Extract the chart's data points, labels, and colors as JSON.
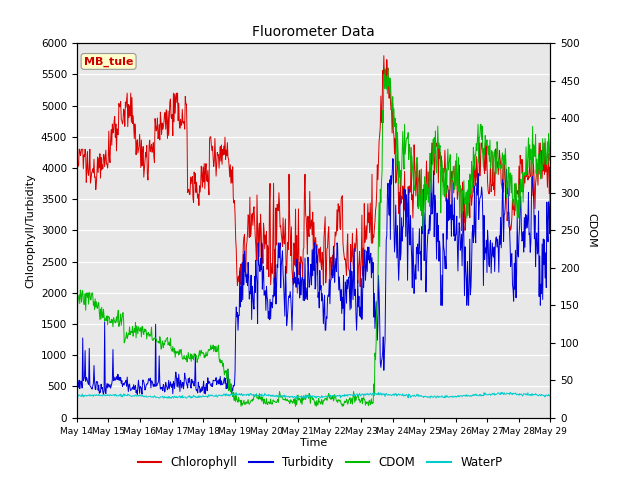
{
  "title": "Fluorometer Data",
  "xlabel": "Time",
  "ylabel_left": "Chlorophyll/Turbidity",
  "ylabel_right": "CDOM",
  "ylim_left": [
    0,
    6000
  ],
  "ylim_right": [
    0,
    500
  ],
  "yticks_left": [
    0,
    500,
    1000,
    1500,
    2000,
    2500,
    3000,
    3500,
    4000,
    4500,
    5000,
    5500,
    6000
  ],
  "yticks_right": [
    0,
    50,
    100,
    150,
    200,
    250,
    300,
    350,
    400,
    450,
    500
  ],
  "xtick_labels": [
    "May 14",
    "May 15",
    "May 16",
    "May 17",
    "May 18",
    "May 19",
    "May 20",
    "May 21",
    "May 22",
    "May 23",
    "May 24",
    "May 25",
    "May 26",
    "May 27",
    "May 28",
    "May 29"
  ],
  "station_label": "MB_tule",
  "fig_facecolor": "#ffffff",
  "plot_facecolor": "#e8e8e8",
  "line_colors": {
    "Chlorophyll": "#dd0000",
    "Turbidity": "#0000dd",
    "CDOM": "#00bb00",
    "WaterP": "#00cccc"
  },
  "legend_entries": [
    "Chlorophyll",
    "Turbidity",
    "CDOM",
    "WaterP"
  ]
}
